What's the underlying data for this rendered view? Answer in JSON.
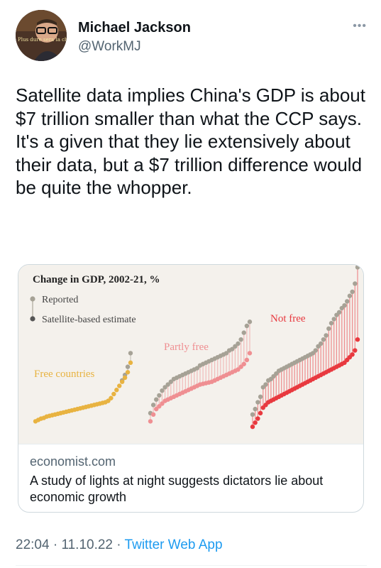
{
  "user": {
    "name": "Michael Jackson",
    "handle": "@WorkMJ",
    "avatar_caption": "Plus dure sera la chute"
  },
  "tweet": {
    "text": "Satellite data implies China's GDP is about $7 trillion smaller than what the CCP says. It's a given that they lie extensively about their data, but a $7 trillion difference would be quite the whopper."
  },
  "card": {
    "domain": "economist.com",
    "title": "A study of lights at night suggests dictators lie about economic growth"
  },
  "chart_data": {
    "type": "scatter",
    "title": "Change in GDP, 2002-21, %",
    "legend": {
      "reported": "Reported",
      "satellite": "Satellite-based estimate",
      "placement": "top-left"
    },
    "groups": [
      {
        "name": "Free countries",
        "color": "#e8b341",
        "reported": [
          10,
          12,
          14,
          15,
          17,
          18,
          19,
          20,
          21,
          22,
          23,
          24,
          25,
          26,
          27,
          28,
          29,
          30,
          31,
          32,
          33,
          34,
          35,
          36,
          37,
          38,
          40,
          44,
          50,
          56,
          62,
          70,
          78,
          90,
          110
        ],
        "satellite": [
          10,
          12,
          14,
          15,
          17,
          18,
          19,
          20,
          21,
          22,
          23,
          24,
          25,
          26,
          27,
          28,
          29,
          30,
          31,
          32,
          33,
          34,
          35,
          36,
          37,
          38,
          40,
          44,
          50,
          56,
          62,
          68,
          74,
          82,
          96
        ]
      },
      {
        "name": "Partly free",
        "color": "#ef8f92",
        "reported": [
          22,
          34,
          42,
          48,
          55,
          60,
          64,
          68,
          72,
          74,
          76,
          78,
          80,
          82,
          84,
          86,
          88,
          92,
          94,
          96,
          98,
          100,
          102,
          104,
          106,
          108,
          110,
          114,
          116,
          120,
          124,
          130,
          140,
          150,
          156
        ],
        "satellite": [
          10,
          20,
          28,
          32,
          36,
          40,
          42,
          44,
          46,
          48,
          50,
          52,
          54,
          56,
          58,
          60,
          62,
          64,
          65,
          66,
          67,
          68,
          70,
          72,
          74,
          76,
          78,
          80,
          82,
          84,
          86,
          90,
          94,
          100,
          110
        ]
      },
      {
        "name": "Not free",
        "color": "#e8393f",
        "reported": [
          20,
          28,
          38,
          46,
          60,
          64,
          70,
          72,
          76,
          80,
          84,
          86,
          88,
          90,
          92,
          94,
          96,
          98,
          100,
          102,
          104,
          106,
          108,
          110,
          114,
          120,
          124,
          130,
          136,
          146,
          154,
          160,
          166,
          170,
          176,
          180,
          186,
          194,
          200,
          212,
          236
        ],
        "satellite": [
          2,
          8,
          14,
          22,
          30,
          34,
          38,
          40,
          42,
          44,
          46,
          48,
          50,
          52,
          54,
          56,
          58,
          60,
          62,
          64,
          66,
          68,
          70,
          72,
          74,
          76,
          78,
          80,
          82,
          84,
          86,
          88,
          90,
          92,
          94,
          96,
          100,
          104,
          108,
          114,
          130
        ]
      }
    ]
  },
  "meta": {
    "time": "22:04",
    "separator": " · ",
    "date": "11.10.22",
    "source": "Twitter Web App"
  },
  "colors": {
    "reported_dot": "#a6a296",
    "stem": "#c9c5bb",
    "link": "#1d9bf0",
    "chart_bg": "#f4f1ec"
  },
  "icons": {
    "more": "more-horizontal-icon"
  }
}
